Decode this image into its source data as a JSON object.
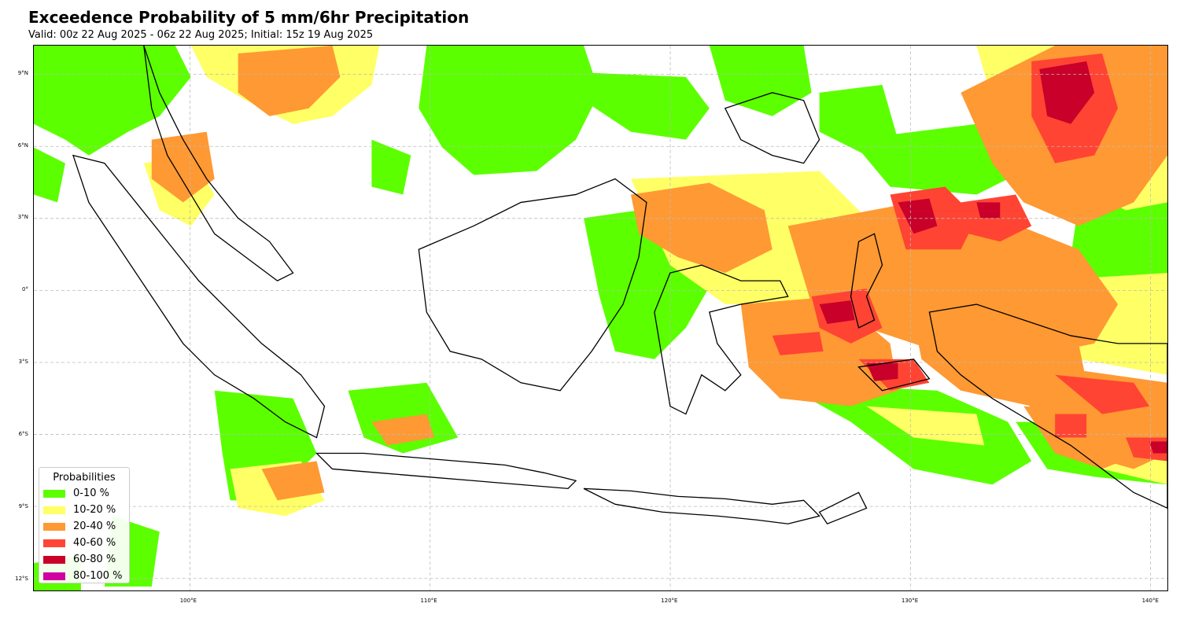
{
  "header": {
    "title": "Exceedence Probability of 5 mm/6hr Precipitation",
    "subtitle": "Valid: 00z 22 Aug 2025 - 06z 22 Aug 2025; Initial: 15z 19 Aug 2025"
  },
  "map": {
    "extent": {
      "lon_min": 93.5,
      "lon_max": 140.7,
      "lat_min": -12.5,
      "lat_max": 10.2
    },
    "lat_ticks": [
      {
        "value": 9,
        "label": "9°N"
      },
      {
        "value": 6,
        "label": "6°N"
      },
      {
        "value": 3,
        "label": "3°N"
      },
      {
        "value": 0,
        "label": "0°"
      },
      {
        "value": -3,
        "label": "3°S"
      },
      {
        "value": -6,
        "label": "6°S"
      },
      {
        "value": -9,
        "label": "9°S"
      },
      {
        "value": -12,
        "label": "12°S"
      }
    ],
    "lon_ticks": [
      {
        "value": 100,
        "label": "100°E"
      },
      {
        "value": 110,
        "label": "110°E"
      },
      {
        "value": 120,
        "label": "120°E"
      },
      {
        "value": 130,
        "label": "130°E"
      },
      {
        "value": 140,
        "label": "140°E"
      }
    ],
    "gridlines": true,
    "colors": {
      "coast": "#000000",
      "grid": "#bbbbbb"
    }
  },
  "legend": {
    "title": "Probabilities",
    "placement": "lower-left",
    "items": [
      {
        "label": "0-10 %",
        "color": "#5cff00"
      },
      {
        "label": "10-20 %",
        "color": "#ffff66"
      },
      {
        "label": "20-40 %",
        "color": "#ff9933"
      },
      {
        "label": "40-60 %",
        "color": "#ff4433"
      },
      {
        "label": "60-80 %",
        "color": "#c8002a"
      },
      {
        "label": "80-100 %",
        "color": "#d000a0"
      }
    ]
  }
}
